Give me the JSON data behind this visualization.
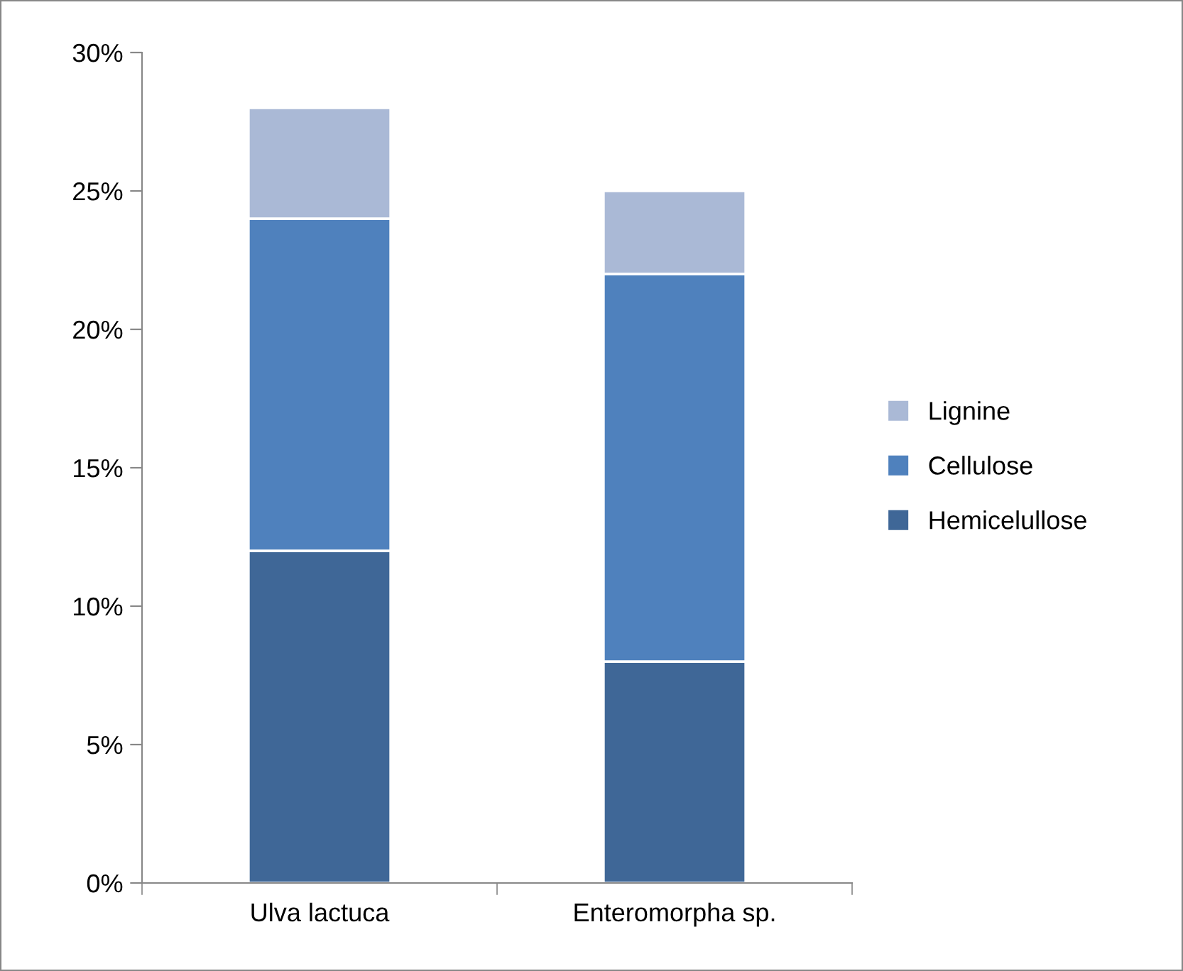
{
  "chart_data": {
    "type": "bar",
    "stacked": true,
    "categories": [
      "Ulva lactuca",
      "Enteromorpha sp."
    ],
    "series": [
      {
        "name": "Hemicelullose",
        "color": "#3f6797",
        "values": [
          12,
          8
        ]
      },
      {
        "name": "Cellulose",
        "color": "#4f81bd",
        "values": [
          12,
          14
        ]
      },
      {
        "name": "Lignine",
        "color": "#aab9d6",
        "values": [
          4,
          3
        ]
      }
    ],
    "ylim": [
      0,
      30
    ],
    "yticks": [
      {
        "value": 0,
        "label": "0%"
      },
      {
        "value": 5,
        "label": "5%"
      },
      {
        "value": 10,
        "label": "10%"
      },
      {
        "value": 15,
        "label": "15%"
      },
      {
        "value": 20,
        "label": "20%"
      },
      {
        "value": 25,
        "label": "25%"
      },
      {
        "value": 30,
        "label": "30%"
      }
    ],
    "grid": false,
    "legend": "right"
  }
}
